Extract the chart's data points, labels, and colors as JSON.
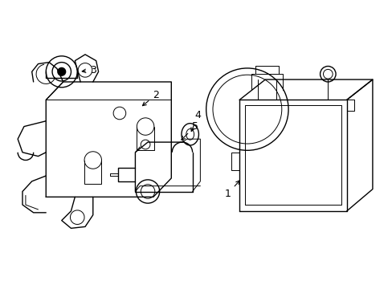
{
  "background_color": "#ffffff",
  "line_color": "#000000",
  "line_width": 1.0,
  "thin_lw": 0.7,
  "label_fontsize": 9,
  "fig_width": 4.89,
  "fig_height": 3.6,
  "dpi": 100
}
